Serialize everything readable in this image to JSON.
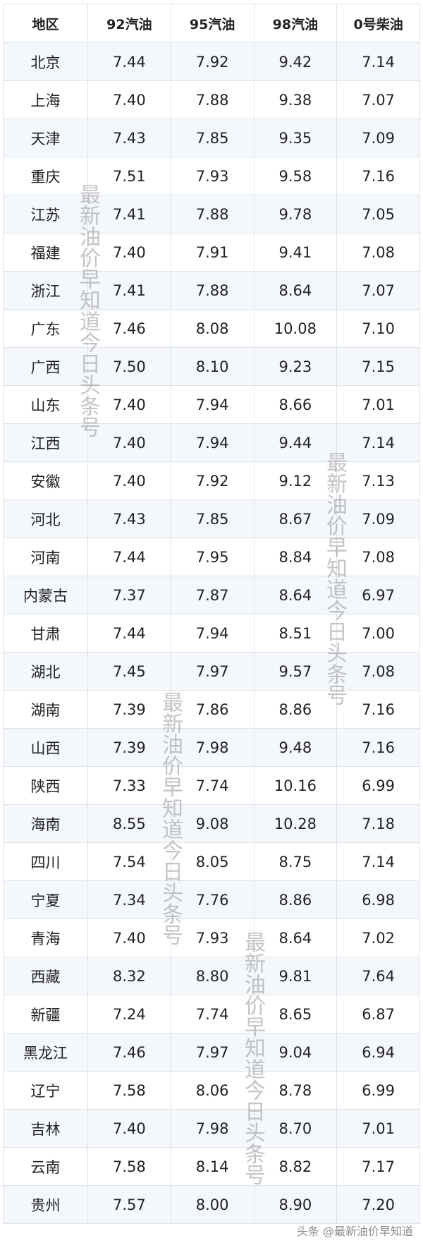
{
  "table": {
    "headers": [
      "地区",
      "92汽油",
      "95汽油",
      "98汽油",
      "0号柴油"
    ],
    "rows": [
      [
        "北京",
        "7.44",
        "7.92",
        "9.42",
        "7.14"
      ],
      [
        "上海",
        "7.40",
        "7.88",
        "9.38",
        "7.07"
      ],
      [
        "天津",
        "7.43",
        "7.85",
        "9.35",
        "7.09"
      ],
      [
        "重庆",
        "7.51",
        "7.93",
        "9.58",
        "7.16"
      ],
      [
        "江苏",
        "7.41",
        "7.88",
        "9.78",
        "7.05"
      ],
      [
        "福建",
        "7.40",
        "7.91",
        "9.41",
        "7.08"
      ],
      [
        "浙江",
        "7.41",
        "7.88",
        "8.64",
        "7.07"
      ],
      [
        "广东",
        "7.46",
        "8.08",
        "10.08",
        "7.10"
      ],
      [
        "广西",
        "7.50",
        "8.10",
        "9.23",
        "7.15"
      ],
      [
        "山东",
        "7.40",
        "7.94",
        "8.66",
        "7.01"
      ],
      [
        "江西",
        "7.40",
        "7.94",
        "9.44",
        "7.14"
      ],
      [
        "安徽",
        "7.40",
        "7.92",
        "9.12",
        "7.13"
      ],
      [
        "河北",
        "7.43",
        "7.85",
        "8.67",
        "7.09"
      ],
      [
        "河南",
        "7.44",
        "7.95",
        "8.84",
        "7.08"
      ],
      [
        "内蒙古",
        "7.37",
        "7.87",
        "8.64",
        "6.97"
      ],
      [
        "甘肃",
        "7.44",
        "7.94",
        "8.51",
        "7.00"
      ],
      [
        "湖北",
        "7.45",
        "7.97",
        "9.57",
        "7.08"
      ],
      [
        "湖南",
        "7.39",
        "7.86",
        "8.86",
        "7.16"
      ],
      [
        "山西",
        "7.39",
        "7.98",
        "9.48",
        "7.16"
      ],
      [
        "陕西",
        "7.33",
        "7.74",
        "10.16",
        "6.99"
      ],
      [
        "海南",
        "8.55",
        "9.08",
        "10.28",
        "7.18"
      ],
      [
        "四川",
        "7.54",
        "8.05",
        "8.75",
        "7.14"
      ],
      [
        "宁夏",
        "7.34",
        "7.76",
        "8.86",
        "6.98"
      ],
      [
        "青海",
        "7.40",
        "7.93",
        "8.64",
        "7.02"
      ],
      [
        "西藏",
        "8.32",
        "8.80",
        "9.81",
        "7.64"
      ],
      [
        "新疆",
        "7.24",
        "7.74",
        "8.65",
        "6.87"
      ],
      [
        "黑龙江",
        "7.46",
        "7.97",
        "9.04",
        "6.94"
      ],
      [
        "辽宁",
        "7.58",
        "8.06",
        "8.78",
        "6.99"
      ],
      [
        "吉林",
        "7.40",
        "7.98",
        "8.70",
        "7.01"
      ],
      [
        "云南",
        "7.58",
        "8.14",
        "8.82",
        "7.17"
      ],
      [
        "贵州",
        "7.57",
        "8.00",
        "8.90",
        "7.20"
      ]
    ]
  },
  "watermark": "最新油价早知道今日头条号",
  "attribution": "头条 @最新油价早知道",
  "colors": {
    "stripe": "#f4f7fc",
    "border": "#dfe3e8",
    "text": "#222222"
  }
}
